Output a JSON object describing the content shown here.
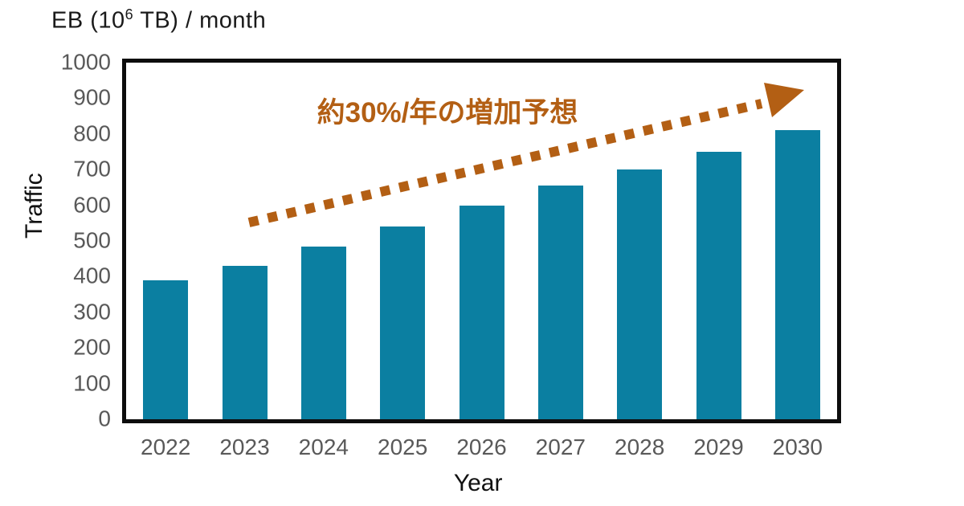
{
  "title": {
    "prefix": "EB (10",
    "sup": "6",
    "suffix": " TB) / month"
  },
  "chart_data": {
    "type": "bar",
    "title": "EB (10⁶ TB) / month",
    "categories": [
      "2022",
      "2023",
      "2024",
      "2025",
      "2026",
      "2027",
      "2028",
      "2029",
      "2030"
    ],
    "values": [
      390,
      430,
      485,
      540,
      600,
      655,
      700,
      750,
      810
    ],
    "xlabel": "Year",
    "ylabel": "Traffic",
    "ylim": [
      0,
      1000
    ],
    "ytick_step": 100,
    "grid": false,
    "legend_position": "none",
    "bar_color": "#0b7fa1",
    "annotation": {
      "text": "約30%/年の増加予想",
      "color": "#b35f14",
      "arrow": "dotted-ascending-right"
    },
    "tick_color": "#595959",
    "axis_color": "#0d0d0d"
  }
}
